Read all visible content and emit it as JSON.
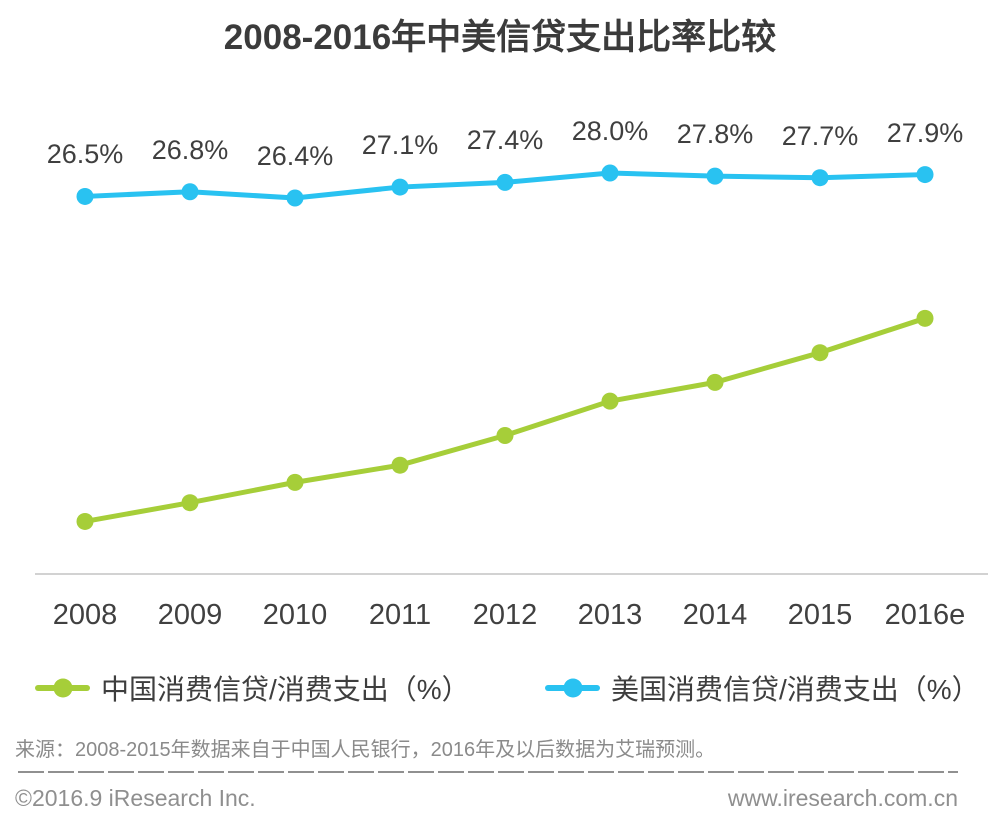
{
  "chart_data": {
    "type": "line",
    "title": "2008-2016年中美信贷支出比率比较",
    "categories": [
      "2008",
      "2009",
      "2010",
      "2011",
      "2012",
      "2013",
      "2014",
      "2015",
      "2016e"
    ],
    "series": [
      {
        "name": "中国消费信贷/消费支出（%）",
        "color": "#A6CE39",
        "values": [
          5.7,
          6.9,
          8.2,
          9.3,
          11.2,
          13.4,
          14.6,
          16.5,
          18.7
        ],
        "labels_visible": false
      },
      {
        "name": "美国消费信贷/消费支出（%）",
        "color": "#29C2F1",
        "values": [
          26.5,
          26.8,
          26.4,
          27.1,
          27.4,
          28.0,
          27.8,
          27.7,
          27.9
        ],
        "labels": [
          "26.5%",
          "26.8%",
          "26.4%",
          "27.1%",
          "27.4%",
          "28.0%",
          "27.8%",
          "27.7%",
          "27.9%"
        ],
        "labels_visible": true
      }
    ],
    "ylim": [
      0,
      30
    ],
    "grid": false,
    "legend_position": "bottom",
    "axis_line_color": "#d2d2d2"
  },
  "footer": {
    "source": "来源：2008-2015年数据来自于中国人民银行，2016年及以后数据为艾瑞预测。",
    "copyright": "©2016.9 iResearch Inc.",
    "website": "www.iresearch.com.cn"
  }
}
